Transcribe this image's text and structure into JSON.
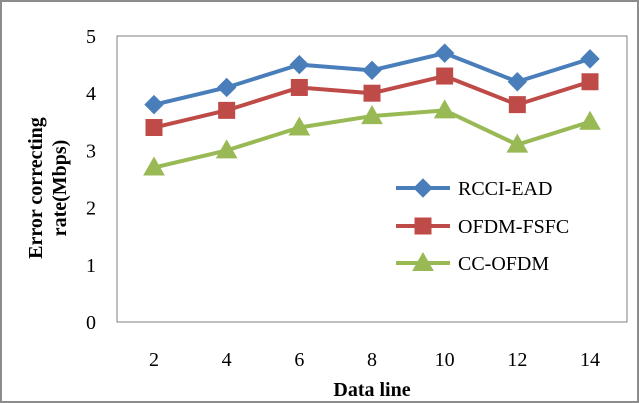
{
  "chart_data": {
    "type": "line",
    "title": "",
    "xlabel": "Data line",
    "ylabel_lines": [
      "Error correcting",
      "rate(Mbps)"
    ],
    "x": [
      2,
      4,
      6,
      8,
      10,
      12,
      14
    ],
    "x_tick_labels": [
      "2",
      "4",
      "6",
      "8",
      "10",
      "12",
      "14"
    ],
    "y_tick_labels": [
      "0",
      "1",
      "2",
      "3",
      "4",
      "5"
    ],
    "ylim": [
      0,
      5
    ],
    "grid": false,
    "legend_position": "right",
    "series": [
      {
        "name": "RCCI-EAD",
        "color": "#4a7ebb",
        "marker": "diamond",
        "values": [
          3.8,
          4.1,
          4.5,
          4.4,
          4.7,
          4.2,
          4.6
        ]
      },
      {
        "name": "OFDM-FSFC",
        "color": "#be4b48",
        "marker": "square",
        "values": [
          3.4,
          3.7,
          4.1,
          4.0,
          4.3,
          3.8,
          4.2
        ]
      },
      {
        "name": "CC-OFDM",
        "color": "#98b954",
        "marker": "triangle",
        "values": [
          2.7,
          3.0,
          3.4,
          3.6,
          3.7,
          3.1,
          3.5
        ]
      }
    ]
  }
}
